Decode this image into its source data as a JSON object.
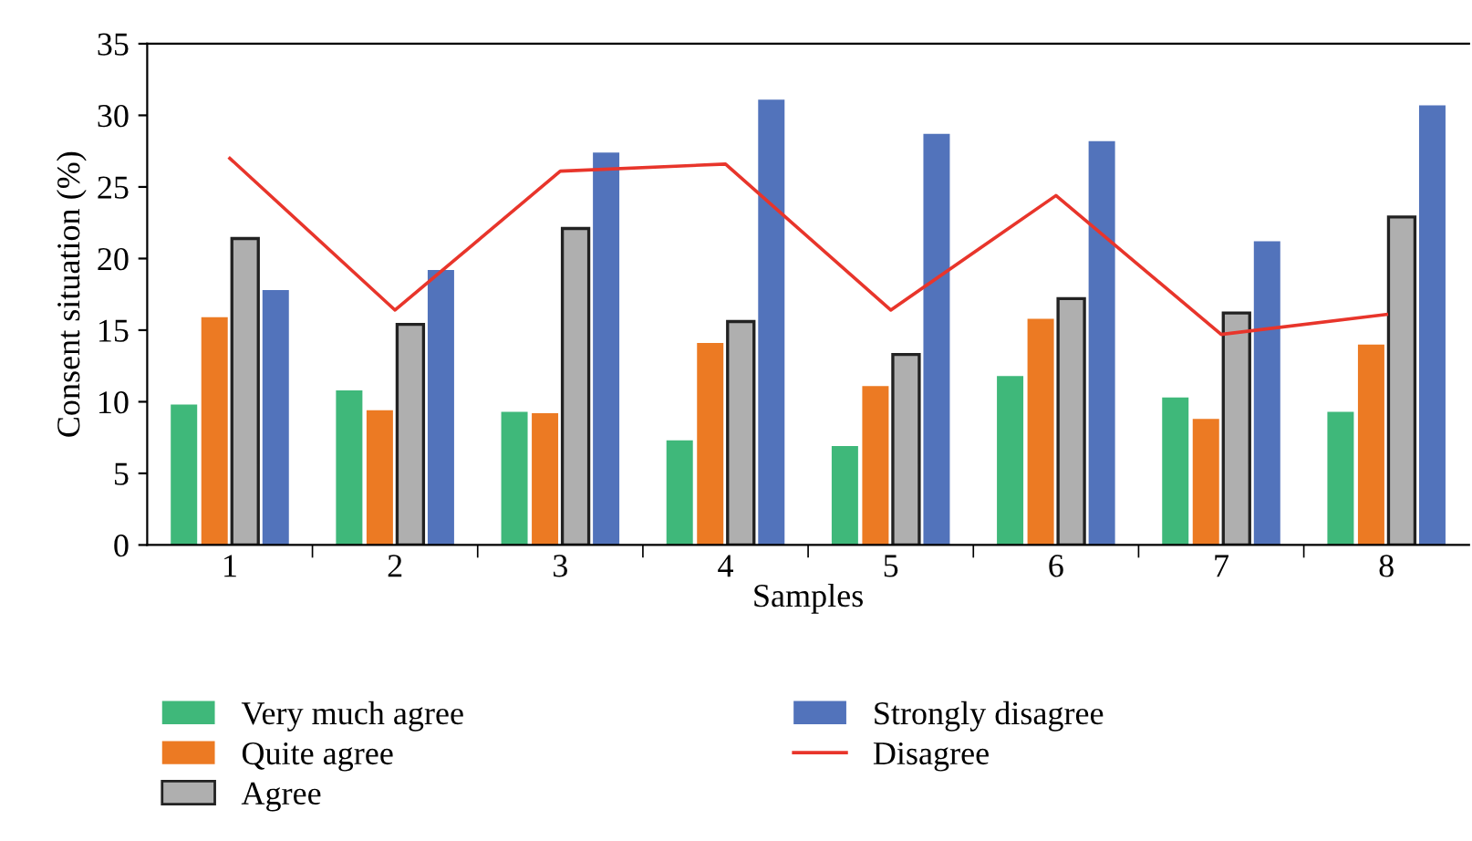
{
  "chart_data": {
    "type": "bar",
    "xlabel": "Samples",
    "ylabel": "Consent situation (%)",
    "categories": [
      "1",
      "2",
      "3",
      "4",
      "5",
      "6",
      "7",
      "8"
    ],
    "series": [
      {
        "name": "Very much agree",
        "color": "#3fb87a",
        "values": [
          9.8,
          10.8,
          9.3,
          7.3,
          6.9,
          11.8,
          10.3,
          9.3
        ]
      },
      {
        "name": "Quite agree",
        "color": "#ec7a23",
        "values": [
          15.9,
          9.4,
          9.2,
          14.1,
          11.1,
          15.8,
          8.8,
          14.0
        ]
      },
      {
        "name": "Agree",
        "color": "#afafaf",
        "values": [
          21.4,
          15.4,
          22.1,
          15.6,
          13.3,
          17.2,
          16.2,
          22.9
        ]
      },
      {
        "name": "Strongly disagree",
        "color": "#5273bb",
        "values": [
          17.8,
          19.2,
          27.4,
          31.1,
          28.7,
          28.2,
          21.2,
          30.7
        ]
      },
      {
        "name": "Disagree",
        "type": "line",
        "color": "#e8352b",
        "values": [
          27.0,
          16.4,
          26.1,
          26.6,
          16.4,
          24.4,
          14.7,
          16.1
        ]
      }
    ],
    "ylim": [
      0,
      35
    ],
    "yticks": [
      0,
      5,
      10,
      15,
      20,
      25,
      30,
      35
    ],
    "legend": "bottom",
    "grid": false
  }
}
